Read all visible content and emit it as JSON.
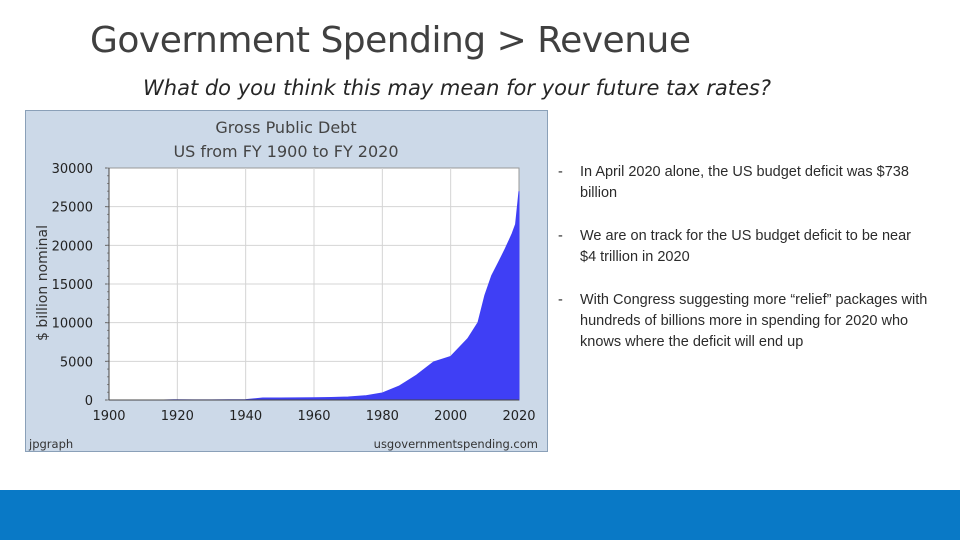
{
  "slide": {
    "title": "Government Spending > Revenue",
    "subtitle": "What do you think this may mean for your future tax rates?"
  },
  "bullets": [
    {
      "dash": "-",
      "text": "In April 2020 alone, the US budget deficit was $738 billion"
    },
    {
      "dash": "-",
      "text": "We are on track for the US budget deficit to be near $4 trillion in 2020"
    },
    {
      "dash": "-",
      "text": "With Congress suggesting more “relief” packages with hundreds of billions more in spending for 2020 who knows where the deficit will end up"
    }
  ],
  "colors": {
    "footer": "#0979c6",
    "chart_background": "#ccd9e8",
    "plot_background": "#ffffff",
    "area_fill": "#3f3ff5",
    "gridline": "#d4d4d4"
  },
  "chart_data": {
    "type": "area",
    "title": "Gross Public Debt",
    "subtitle": "US from FY 1900 to FY 2020",
    "ylabel": "$ billion nominal",
    "xlabel": "",
    "xlim": [
      1900,
      2020
    ],
    "ylim": [
      0,
      30000
    ],
    "x_ticks": [
      "1900",
      "1920",
      "1940",
      "1960",
      "1980",
      "2000",
      "2020"
    ],
    "y_ticks": [
      "0",
      "5000",
      "10000",
      "15000",
      "20000",
      "25000",
      "30000"
    ],
    "grid": true,
    "source_left": "jpgraph",
    "source_right": "usgovernmentspending.com",
    "series": [
      {
        "x": [
          1900,
          1910,
          1916,
          1919,
          1925,
          1930,
          1935,
          1940,
          1945,
          1950,
          1955,
          1960,
          1965,
          1970,
          1975,
          1980,
          1985,
          1990,
          1995,
          2000,
          2005,
          2008,
          2010,
          2012,
          2014,
          2016,
          2018,
          2019,
          2020
        ],
        "y": [
          2,
          3,
          3,
          25,
          21,
          16,
          29,
          51,
          260,
          257,
          274,
          291,
          322,
          381,
          542,
          909,
          1817,
          3206,
          4921,
          5629,
          7933,
          10025,
          13529,
          16066,
          17794,
          19573,
          21516,
          22719,
          27000
        ]
      }
    ]
  }
}
